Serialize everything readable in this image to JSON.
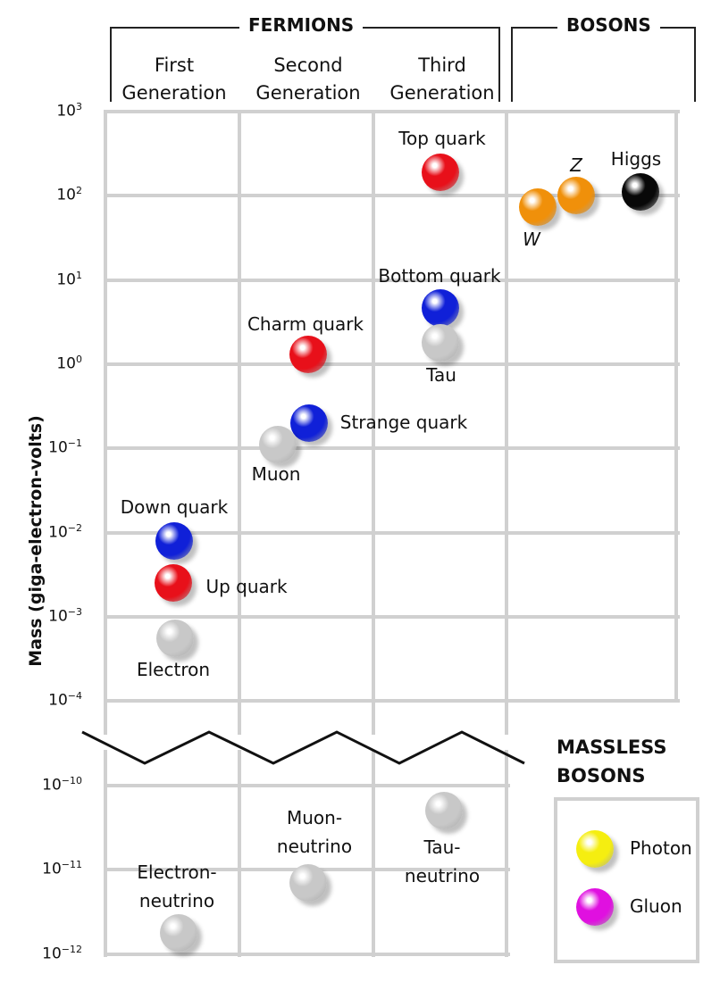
{
  "chart_data": {
    "type": "scatter",
    "ylabel": "Mass (giga-electron-volts)",
    "yscale": "log",
    "ylim_upper": [
      0.0001,
      1000
    ],
    "ylim_lower": [
      1e-12,
      1e-10
    ],
    "axis_break": "between 10^-4 and 10^-10",
    "grid": true,
    "yticks": [
      {
        "base": "10",
        "exp": "3"
      },
      {
        "base": "10",
        "exp": "2"
      },
      {
        "base": "10",
        "exp": "1"
      },
      {
        "base": "10",
        "exp": "0"
      },
      {
        "base": "10",
        "exp": "−1"
      },
      {
        "base": "10",
        "exp": "−2"
      },
      {
        "base": "10",
        "exp": "−3"
      },
      {
        "base": "10",
        "exp": "−4"
      },
      {
        "base": "10",
        "exp": "−10"
      },
      {
        "base": "10",
        "exp": "−11"
      },
      {
        "base": "10",
        "exp": "−12"
      }
    ],
    "groups": [
      {
        "label": "FERMIONS",
        "columns": [
          {
            "line1": "First",
            "line2": "Generation"
          },
          {
            "line1": "Second",
            "line2": "Generation"
          },
          {
            "line1": "Third",
            "line2": "Generation"
          }
        ]
      },
      {
        "label": "BOSONS",
        "columns": [
          {
            "line1": "",
            "line2": ""
          }
        ]
      }
    ],
    "points": [
      {
        "name": "Top quark",
        "column": 3,
        "mass": 190,
        "color": "#e8101a"
      },
      {
        "name": "Bottom quark",
        "column": 3,
        "mass": 4.7,
        "color": "#1020d8"
      },
      {
        "name": "Tau",
        "column": 3,
        "mass": 1.8,
        "color": "#c8c8c8"
      },
      {
        "name": "Charm quark",
        "column": 2,
        "mass": 1.3,
        "color": "#e8101a"
      },
      {
        "name": "Strange quark",
        "column": 2,
        "mass": 0.2,
        "color": "#1020d8"
      },
      {
        "name": "Muon",
        "column": 2,
        "mass": 0.11,
        "color": "#c8c8c8"
      },
      {
        "name": "Down quark",
        "column": 1,
        "mass": 0.008,
        "color": "#1020d8"
      },
      {
        "name": "Up quark",
        "column": 1,
        "mass": 0.0025,
        "color": "#e8101a"
      },
      {
        "name": "Electron",
        "column": 1,
        "mass": 0.00056,
        "color": "#c8c8c8"
      },
      {
        "name": "W",
        "column": 4,
        "mass": 73,
        "color": "#f0900a"
      },
      {
        "name": "Z",
        "column": 4,
        "mass": 100,
        "color": "#f0900a"
      },
      {
        "name": "Higgs",
        "column": 4,
        "mass": 110,
        "color": "#080808"
      },
      {
        "name": "Electron-\nneutrino",
        "column": 1,
        "mass": 1.8e-12,
        "color": "#c8c8c8"
      },
      {
        "name": "Muon-\nneutrino",
        "column": 2,
        "mass": 7e-12,
        "color": "#c8c8c8"
      },
      {
        "name": "Tau-\nneutrino",
        "column": 3,
        "mass": 5e-11,
        "color": "#c8c8c8"
      }
    ],
    "massless": {
      "title_line1": "MASSLESS",
      "title_line2": "BOSONS",
      "items": [
        {
          "name": "Photon",
          "color": "#f5ee10"
        },
        {
          "name": "Gluon",
          "color": "#e010e0"
        }
      ]
    }
  }
}
